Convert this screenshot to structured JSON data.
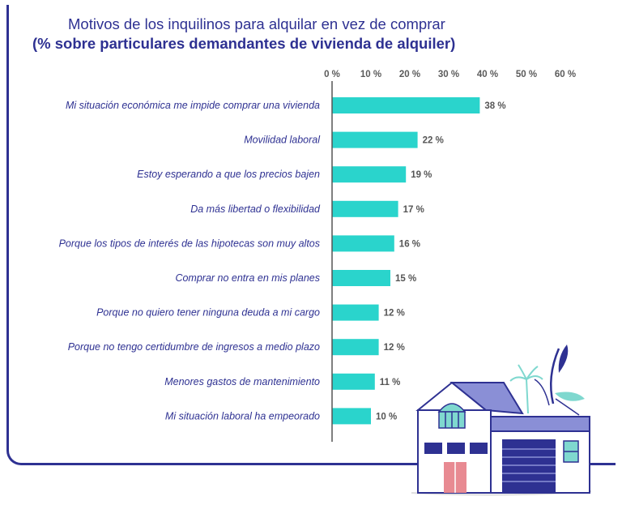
{
  "colors": {
    "bar": "#2ad4cc",
    "frame": "#2e3192",
    "text": "#2e3192"
  },
  "chart_data": {
    "type": "bar",
    "orientation": "horizontal",
    "title": "Motivos de los inquilinos para alquilar en vez de comprar",
    "subtitle": "(% sobre particulares demandantes de vivienda de alquiler)",
    "categories": [
      "Mi situación económica me impide comprar una vivienda",
      "Movilidad laboral",
      "Estoy esperando a que los precios bajen",
      "Da más libertad o flexibilidad",
      "Porque los tipos de interés de las hipotecas son muy altos",
      "Comprar no entra en mis planes",
      "Porque no quiero tener ninguna deuda a mi cargo",
      "Porque no tengo certidumbre de ingresos a medio plazo",
      "Menores gastos de mantenimiento",
      "Mi situación laboral ha empeorado"
    ],
    "values": [
      38,
      22,
      19,
      17,
      16,
      15,
      12,
      12,
      11,
      10
    ],
    "value_labels": [
      "38 %",
      "22 %",
      "19 %",
      "17 %",
      "16 %",
      "15 %",
      "12 %",
      "12 %",
      "11 %",
      "10 %"
    ],
    "xlim": [
      0,
      60
    ],
    "ticks": [
      0,
      10,
      20,
      30,
      40,
      50,
      60
    ],
    "tick_labels": [
      "0 %",
      "10 %",
      "20 %",
      "30 %",
      "40 %",
      "50 %",
      "60 %"
    ],
    "axis_position": "top",
    "grid": false,
    "legend": "none"
  }
}
